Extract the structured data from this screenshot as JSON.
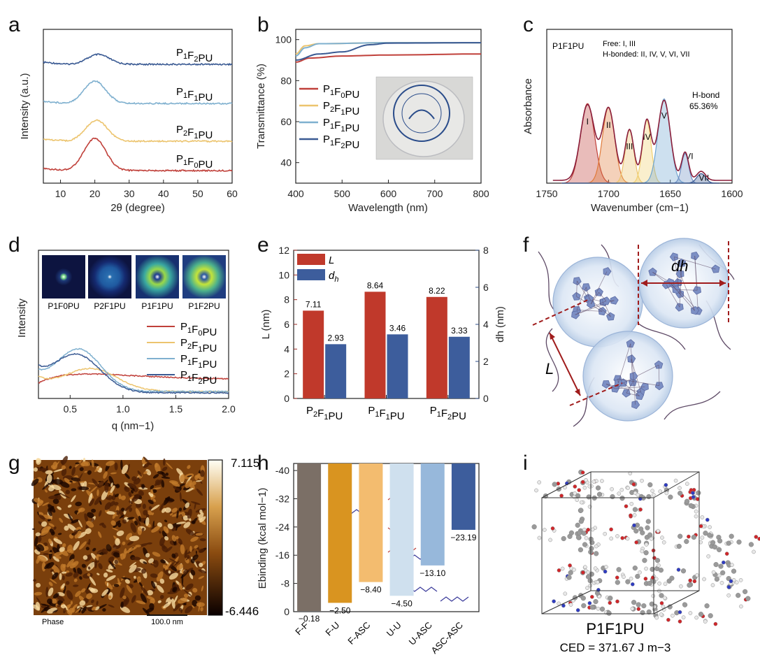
{
  "panel_labels": [
    "a",
    "b",
    "c",
    "d",
    "e",
    "f",
    "g",
    "h",
    "i"
  ],
  "colors": {
    "red": "#c0403a",
    "yellow": "#ecc46e",
    "lightblue": "#7fb0cf",
    "darkblue": "#3a5a93",
    "barred": "#c0392b",
    "barblue": "#3d5d9c",
    "axisred": "#9b2b25",
    "axisblue": "#2e4c87"
  },
  "chart_data": [
    {
      "id": "a",
      "type": "line",
      "xlabel": "2θ (degree)",
      "ylabel": "Intensity (a.u.)",
      "xlim": [
        5,
        60
      ],
      "xticks": [
        "10",
        "20",
        "30",
        "40",
        "50",
        "60"
      ],
      "series": [
        {
          "name": "P1F2PU",
          "peak_x": 21,
          "color": "#3a5a93"
        },
        {
          "name": "P1F1PU",
          "peak_x": 20,
          "color": "#7fb0cf"
        },
        {
          "name": "P2F1PU",
          "peak_x": 20.5,
          "color": "#ecc46e"
        },
        {
          "name": "P1F0PU",
          "peak_x": 20,
          "color": "#c0403a"
        }
      ]
    },
    {
      "id": "b",
      "type": "line",
      "xlabel": "Wavelength (nm)",
      "ylabel": "Transmittance (%)",
      "xlim": [
        400,
        800
      ],
      "ylim": [
        30,
        105
      ],
      "xticks": [
        "400",
        "500",
        "600",
        "700",
        "800"
      ],
      "yticks": [
        "40",
        "60",
        "80",
        "100"
      ],
      "series": [
        {
          "name": "P1F0PU",
          "x": [
            400,
            430,
            500,
            600,
            800
          ],
          "y": [
            89,
            91,
            92,
            92.5,
            93
          ],
          "color": "#c0403a"
        },
        {
          "name": "P2F1PU",
          "x": [
            400,
            420,
            450,
            600,
            800
          ],
          "y": [
            93,
            97,
            98,
            98.5,
            98.5
          ],
          "color": "#ecc46e"
        },
        {
          "name": "P1F1PU",
          "x": [
            400,
            420,
            450,
            600,
            800
          ],
          "y": [
            92,
            96,
            98,
            98.5,
            98.5
          ],
          "color": "#7fb0cf"
        },
        {
          "name": "P1F2PU",
          "x": [
            400,
            450,
            500,
            560,
            600,
            800
          ],
          "y": [
            90,
            93,
            94,
            97.5,
            98.3,
            98.5
          ],
          "color": "#3a5a93"
        }
      ]
    },
    {
      "id": "c",
      "type": "area",
      "xlabel": "Wavenumber (cm−1)",
      "ylabel": "Absorbance",
      "xlim": [
        1750,
        1600
      ],
      "xticks": [
        "1750",
        "1700",
        "1650",
        "1600"
      ],
      "sample": "P1F1PU",
      "note_free": "Free: I, III",
      "note_bonded": "H-bonded: II, IV, V, VI, VII",
      "hbond_label": "H-bond",
      "hbond_value": "65.36%",
      "peaks": [
        {
          "label": "I",
          "center": 1717,
          "height": 0.67,
          "width": 8,
          "color": "#c0403a"
        },
        {
          "label": "II",
          "center": 1700,
          "height": 0.64,
          "width": 7,
          "color": "#e07a3a"
        },
        {
          "label": "III",
          "center": 1683,
          "height": 0.45,
          "width": 5,
          "color": "#ecc46e"
        },
        {
          "label": "IV",
          "center": 1669,
          "height": 0.53,
          "width": 5,
          "color": "#f0d070"
        },
        {
          "label": "V",
          "center": 1655,
          "height": 0.71,
          "width": 7,
          "color": "#6fa5d0"
        },
        {
          "label": "VI",
          "center": 1638,
          "height": 0.25,
          "width": 4,
          "color": "#6e8fc4"
        },
        {
          "label": "VII",
          "center": 1625,
          "height": 0.08,
          "width": 5,
          "color": "#3a5a93"
        }
      ]
    },
    {
      "id": "d",
      "type": "line",
      "xlabel": "q (nm−1)",
      "ylabel": "Intensity",
      "xlim": [
        0.2,
        2.0
      ],
      "xticks": [
        "0.5",
        "1.0",
        "1.5",
        "2.0"
      ],
      "insets": [
        "P1F0PU",
        "P2F1PU",
        "P1F1PU",
        "P1F2PU"
      ],
      "series": [
        {
          "name": "P1F0PU",
          "color": "#c0403a"
        },
        {
          "name": "P2F1PU",
          "color": "#ecc46e"
        },
        {
          "name": "P1F1PU",
          "color": "#7fb0cf"
        },
        {
          "name": "P1F2PU",
          "color": "#3a5a93"
        }
      ]
    },
    {
      "id": "e",
      "type": "bar",
      "categories": [
        "P2F1PU",
        "P1F1PU",
        "P1F2PU"
      ],
      "ylabel_left": "L (nm)",
      "ylabel_right": "dh (nm)",
      "ylim_left": [
        0,
        12
      ],
      "ylim_right": [
        0,
        8
      ],
      "yticks_left": [
        "0",
        "2",
        "4",
        "6",
        "8",
        "10",
        "12"
      ],
      "yticks_right": [
        "0",
        "2",
        "4",
        "6",
        "8"
      ],
      "series": [
        {
          "name": "L",
          "values": [
            7.11,
            8.64,
            8.22
          ],
          "labels": [
            "7.11",
            "8.64",
            "8.22"
          ],
          "axis": "left",
          "color": "#c0392b"
        },
        {
          "name": "dh",
          "values": [
            2.93,
            3.46,
            3.33
          ],
          "labels": [
            "2.93",
            "3.46",
            "3.33"
          ],
          "axis": "right",
          "color": "#3d5d9c"
        }
      ]
    },
    {
      "id": "h",
      "type": "bar",
      "ylabel": "Ebinding (kcal mol−1)",
      "ylim": [
        -42,
        0
      ],
      "yticks": [
        "0",
        "-8",
        "-16",
        "-24",
        "-32",
        "-40"
      ],
      "categories": [
        "F-F",
        "F-U",
        "F-ASC",
        "U-U",
        "U-ASC",
        "ASC-ASC"
      ],
      "values": [
        -0.18,
        -2.5,
        -8.4,
        -4.5,
        -13.1,
        -23.19
      ],
      "labels": [
        "−0.18",
        "−2.50",
        "−8.40",
        "−4.50",
        "−13.10",
        "−23.19"
      ],
      "colors": [
        "#7b6f66",
        "#d99420",
        "#f3bc6f",
        "#cfe0ee",
        "#97b8db",
        "#3d5d9c"
      ]
    }
  ],
  "panel_f": {
    "dh_label": "dh",
    "L_label": "L"
  },
  "panel_g": {
    "scale_max": "7.115",
    "scale_min": "-6.446",
    "mode": "Phase",
    "scalebar": "100.0 nm"
  },
  "panel_i": {
    "sample": "P1F1PU",
    "ced": "CED = 371.67 J m−3"
  }
}
